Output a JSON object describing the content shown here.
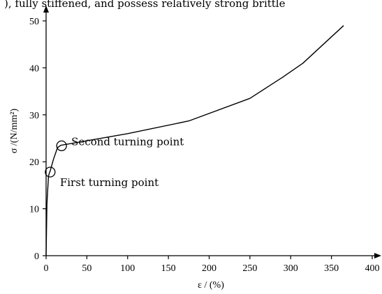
{
  "top_text_fragment": "), fully stiffened, and possess relatively strong brittle",
  "chart_data": {
    "type": "line",
    "xlabel": "ε / (%)",
    "ylabel": "σ /(N/mm²)",
    "xlim": [
      0,
      400
    ],
    "ylim": [
      0,
      50
    ],
    "x_ticks": [
      0,
      50,
      100,
      150,
      200,
      250,
      300,
      350,
      400
    ],
    "y_ticks": [
      0,
      10,
      20,
      30,
      40,
      50
    ],
    "grid": false,
    "series": [
      {
        "x": [
          0,
          1,
          2,
          3,
          4,
          5,
          9,
          14,
          18,
          100,
          175,
          250,
          290,
          315,
          340,
          365
        ],
        "y": [
          0,
          11,
          14,
          17,
          17.6,
          18,
          20.5,
          23,
          23.5,
          26,
          28.7,
          33.5,
          38,
          41,
          45,
          49
        ]
      }
    ],
    "annotations": [
      {
        "text": "First turning point",
        "x": 5,
        "y": 17.8
      },
      {
        "text": "Second turning point",
        "x": 19,
        "y": 23.4
      }
    ]
  }
}
